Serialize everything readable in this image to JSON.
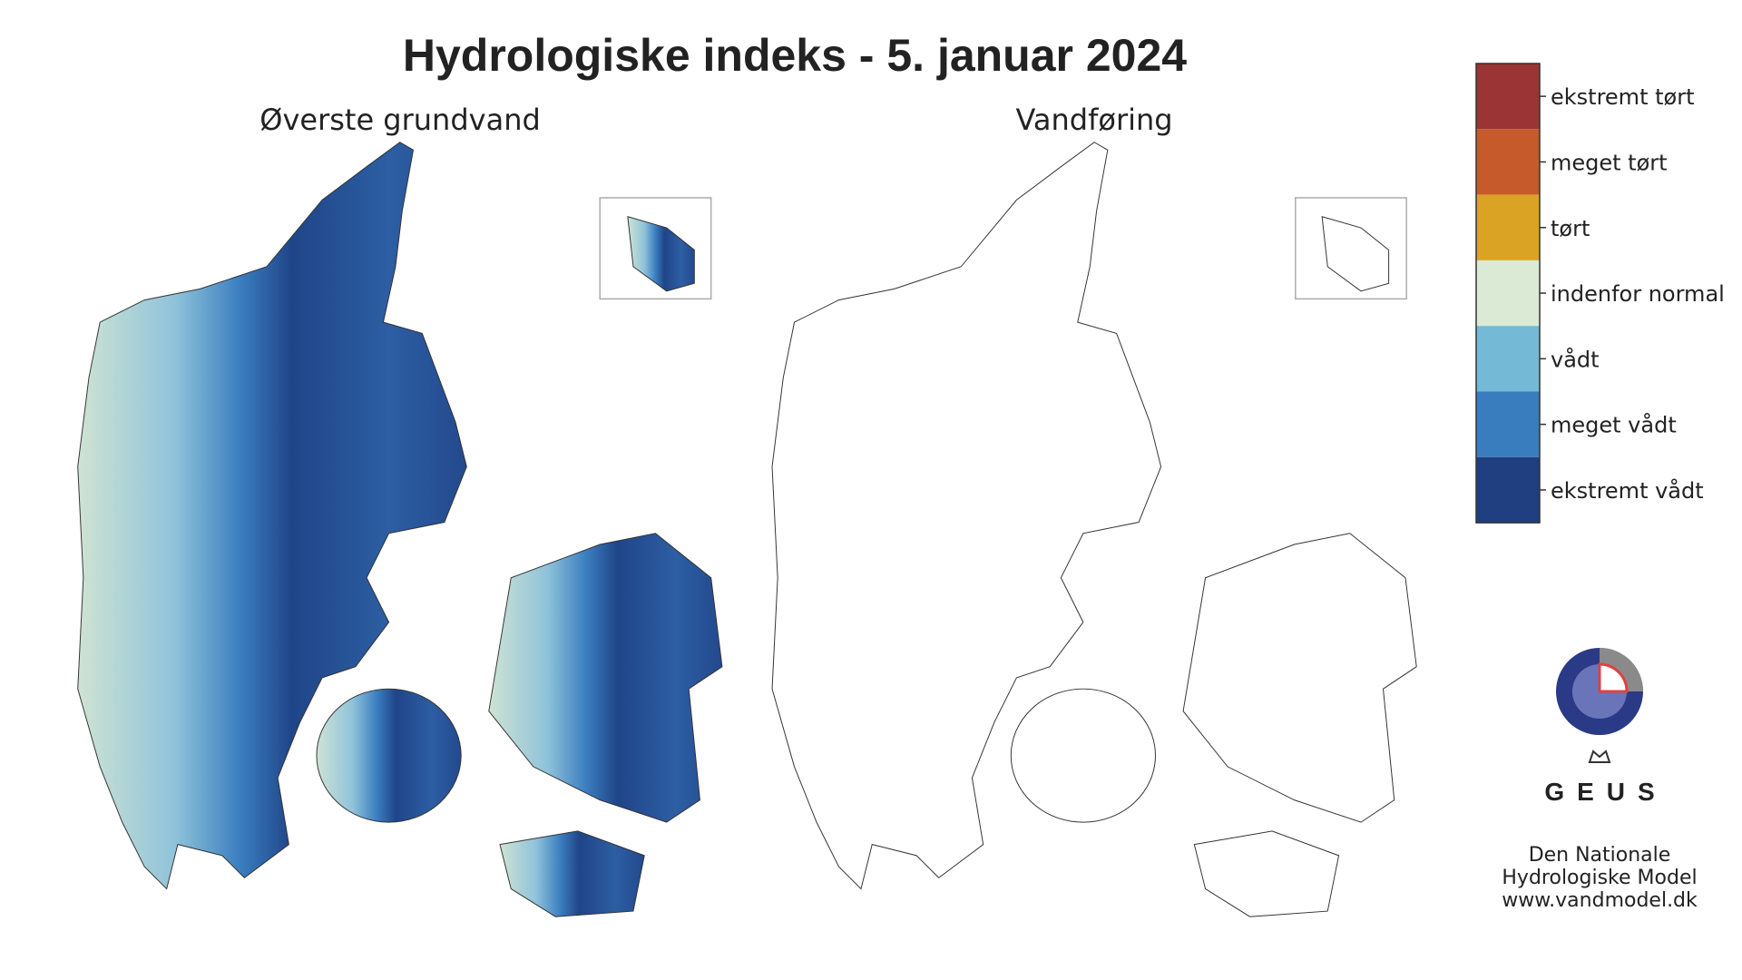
{
  "title": "Hydrologiske indeks - 5. januar 2024",
  "maps": [
    {
      "title": "Øverste grundvand"
    },
    {
      "title": "Vandføring"
    }
  ],
  "legend": [
    {
      "label": "ekstremt tørt",
      "color": "#9b3535"
    },
    {
      "label": "meget tørt",
      "color": "#c65a2a"
    },
    {
      "label": "tørt",
      "color": "#dba324"
    },
    {
      "label": "indenfor normal",
      "color": "#dbead5"
    },
    {
      "label": "vådt",
      "color": "#74b9d6"
    },
    {
      "label": "meget vådt",
      "color": "#3a7dbf"
    },
    {
      "label": "ekstremt vådt",
      "color": "#1f3f80"
    }
  ],
  "logo": {
    "text": "GEUS"
  },
  "footer": [
    "Den Nationale",
    "Hydrologiske Model",
    "www.vandmodel.dk"
  ]
}
